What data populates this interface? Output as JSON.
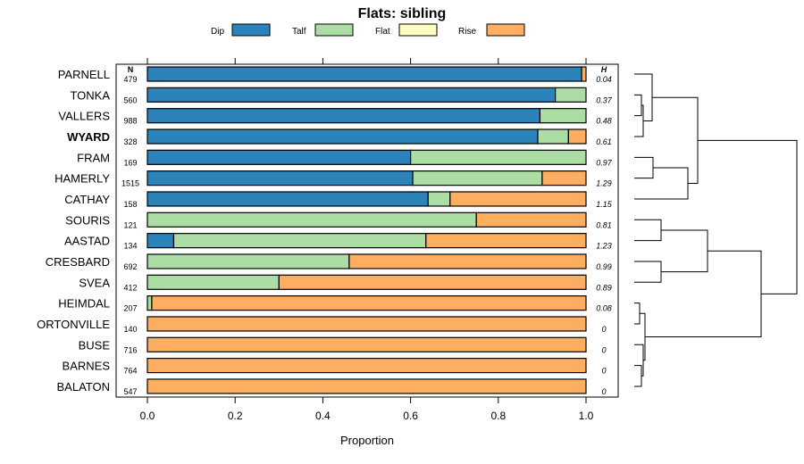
{
  "chart_data": {
    "type": "bar",
    "stacked": true,
    "orientation": "horizontal",
    "title": "Flats: sibling",
    "xlabel": "Proportion",
    "xlim": [
      0,
      1
    ],
    "x_ticks": [
      "0.0",
      "0.2",
      "0.4",
      "0.6",
      "0.8",
      "1.0"
    ],
    "n_header": "N",
    "h_header": "H",
    "legend": [
      {
        "name": "Dip",
        "color": "#2b83ba"
      },
      {
        "name": "Talf",
        "color": "#abdda4"
      },
      {
        "name": "Flat",
        "color": "#ffffbf"
      },
      {
        "name": "Rise",
        "color": "#fdae61"
      }
    ],
    "highlighted_category": "WYARD",
    "categories": [
      "PARNELL",
      "TONKA",
      "VALLERS",
      "WYARD",
      "FRAM",
      "HAMERLY",
      "CATHAY",
      "SOURIS",
      "AASTAD",
      "CRESBARD",
      "SVEA",
      "HEIMDAL",
      "ORTONVILLE",
      "BUSE",
      "BARNES",
      "BALATON"
    ],
    "n": [
      "479",
      "560",
      "988",
      "328",
      "169",
      "1515",
      "158",
      "121",
      "134",
      "692",
      "412",
      "207",
      "140",
      "716",
      "764",
      "547"
    ],
    "h": [
      "0.04",
      "0.37",
      "0.48",
      "0.61",
      "0.97",
      "1.29",
      "1.15",
      "0.81",
      "1.23",
      "0.99",
      "0.89",
      "0.08",
      "0",
      "0",
      "0",
      "0"
    ],
    "series": [
      {
        "name": "Dip",
        "values": [
          0.99,
          0.93,
          0.895,
          0.89,
          0.6,
          0.605,
          0.64,
          0.0,
          0.06,
          0.0,
          0.0,
          0.0,
          0,
          0,
          0,
          0
        ]
      },
      {
        "name": "Talf",
        "values": [
          0.0,
          0.07,
          0.105,
          0.07,
          0.4,
          0.295,
          0.05,
          0.75,
          0.575,
          0.46,
          0.3,
          0.01,
          0,
          0,
          0,
          0
        ]
      },
      {
        "name": "Flat",
        "values": [
          0,
          0,
          0,
          0,
          0,
          0,
          0,
          0,
          0,
          0,
          0,
          0,
          0,
          0,
          0,
          0
        ]
      },
      {
        "name": "Rise",
        "values": [
          0.01,
          0.0,
          0.0,
          0.04,
          0.0,
          0.1,
          0.31,
          0.25,
          0.365,
          0.54,
          0.7,
          0.99,
          1,
          1,
          1,
          1
        ]
      }
    ]
  }
}
